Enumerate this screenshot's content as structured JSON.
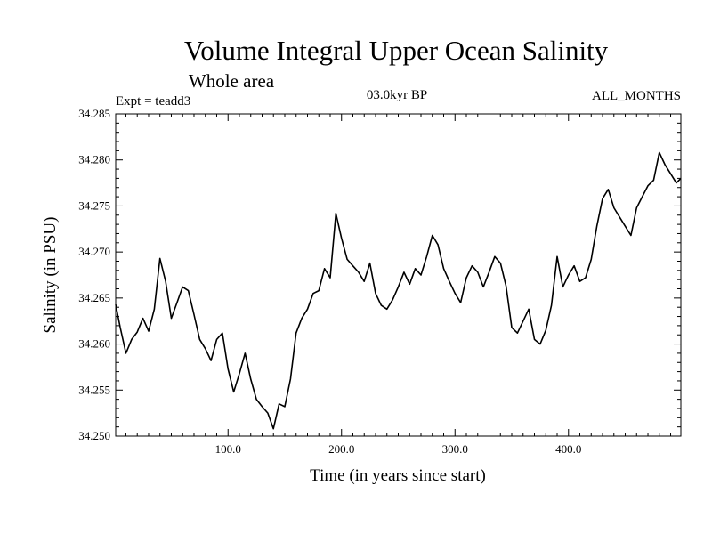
{
  "chart_data": {
    "type": "line",
    "title": "Volume Integral Upper Ocean Salinity",
    "subtitle": "Whole area",
    "experiment": "Expt = teadd3",
    "period": "03.0kyr BP",
    "months": "ALL_MONTHS",
    "xlabel": "Time (in years since start)",
    "ylabel": "Salinity (in PSU)",
    "xlim": [
      1,
      499
    ],
    "ylim": [
      34.25,
      34.285
    ],
    "x_ticks": [
      100,
      200,
      300,
      400
    ],
    "x_tick_labels": [
      "100.0",
      "200.0",
      "300.0",
      "400.0"
    ],
    "y_ticks": [
      34.25,
      34.255,
      34.26,
      34.265,
      34.27,
      34.275,
      34.28,
      34.285
    ],
    "y_tick_labels": [
      "34.250",
      "34.255",
      "34.260",
      "34.265",
      "34.270",
      "34.275",
      "34.280",
      "34.285"
    ],
    "series": [
      {
        "name": "Salinity",
        "x": [
          1,
          5,
          10,
          15,
          20,
          25,
          30,
          35,
          40,
          45,
          50,
          55,
          60,
          65,
          70,
          75,
          80,
          85,
          90,
          95,
          100,
          105,
          110,
          115,
          120,
          125,
          130,
          135,
          140,
          145,
          150,
          155,
          160,
          165,
          170,
          175,
          180,
          185,
          190,
          195,
          200,
          205,
          210,
          215,
          220,
          225,
          230,
          235,
          240,
          245,
          250,
          255,
          260,
          265,
          270,
          275,
          280,
          285,
          290,
          295,
          300,
          305,
          310,
          315,
          320,
          325,
          330,
          335,
          340,
          345,
          350,
          355,
          360,
          365,
          370,
          375,
          380,
          385,
          390,
          395,
          400,
          405,
          410,
          415,
          420,
          425,
          430,
          435,
          440,
          445,
          450,
          455,
          460,
          465,
          470,
          475,
          480,
          485,
          490,
          495,
          499
        ],
        "values": [
          34.2643,
          34.2618,
          34.259,
          34.2605,
          34.2613,
          34.2628,
          34.2614,
          34.2638,
          34.2693,
          34.2668,
          34.2628,
          34.2645,
          34.2662,
          34.2658,
          34.2632,
          34.2605,
          34.2595,
          34.2582,
          34.2605,
          34.2612,
          34.2573,
          34.2548,
          34.2568,
          34.259,
          34.2562,
          34.254,
          34.2532,
          34.2525,
          34.2508,
          34.2535,
          34.2532,
          34.2562,
          34.2612,
          34.2628,
          34.2638,
          34.2655,
          34.2658,
          34.2682,
          34.2672,
          34.2742,
          34.2715,
          34.2692,
          34.2685,
          34.2678,
          34.2668,
          34.2688,
          34.2655,
          34.2642,
          34.2638,
          34.2648,
          34.2662,
          34.2678,
          34.2665,
          34.2682,
          34.2675,
          34.2695,
          34.2718,
          34.2708,
          34.2682,
          34.2668,
          34.2655,
          34.2645,
          34.2672,
          34.2685,
          34.2678,
          34.2662,
          34.2678,
          34.2695,
          34.2688,
          34.2663,
          34.2618,
          34.2612,
          34.2625,
          34.2638,
          34.2605,
          34.26,
          34.2615,
          34.2642,
          34.2695,
          34.2662,
          34.2675,
          34.2685,
          34.2668,
          34.2672,
          34.2692,
          34.2728,
          34.2758,
          34.2768,
          34.2748,
          34.2738,
          34.2728,
          34.2718,
          34.2748,
          34.276,
          34.2772,
          34.2778,
          34.2808,
          34.2795,
          34.2785,
          34.2775,
          34.278
        ]
      }
    ]
  }
}
